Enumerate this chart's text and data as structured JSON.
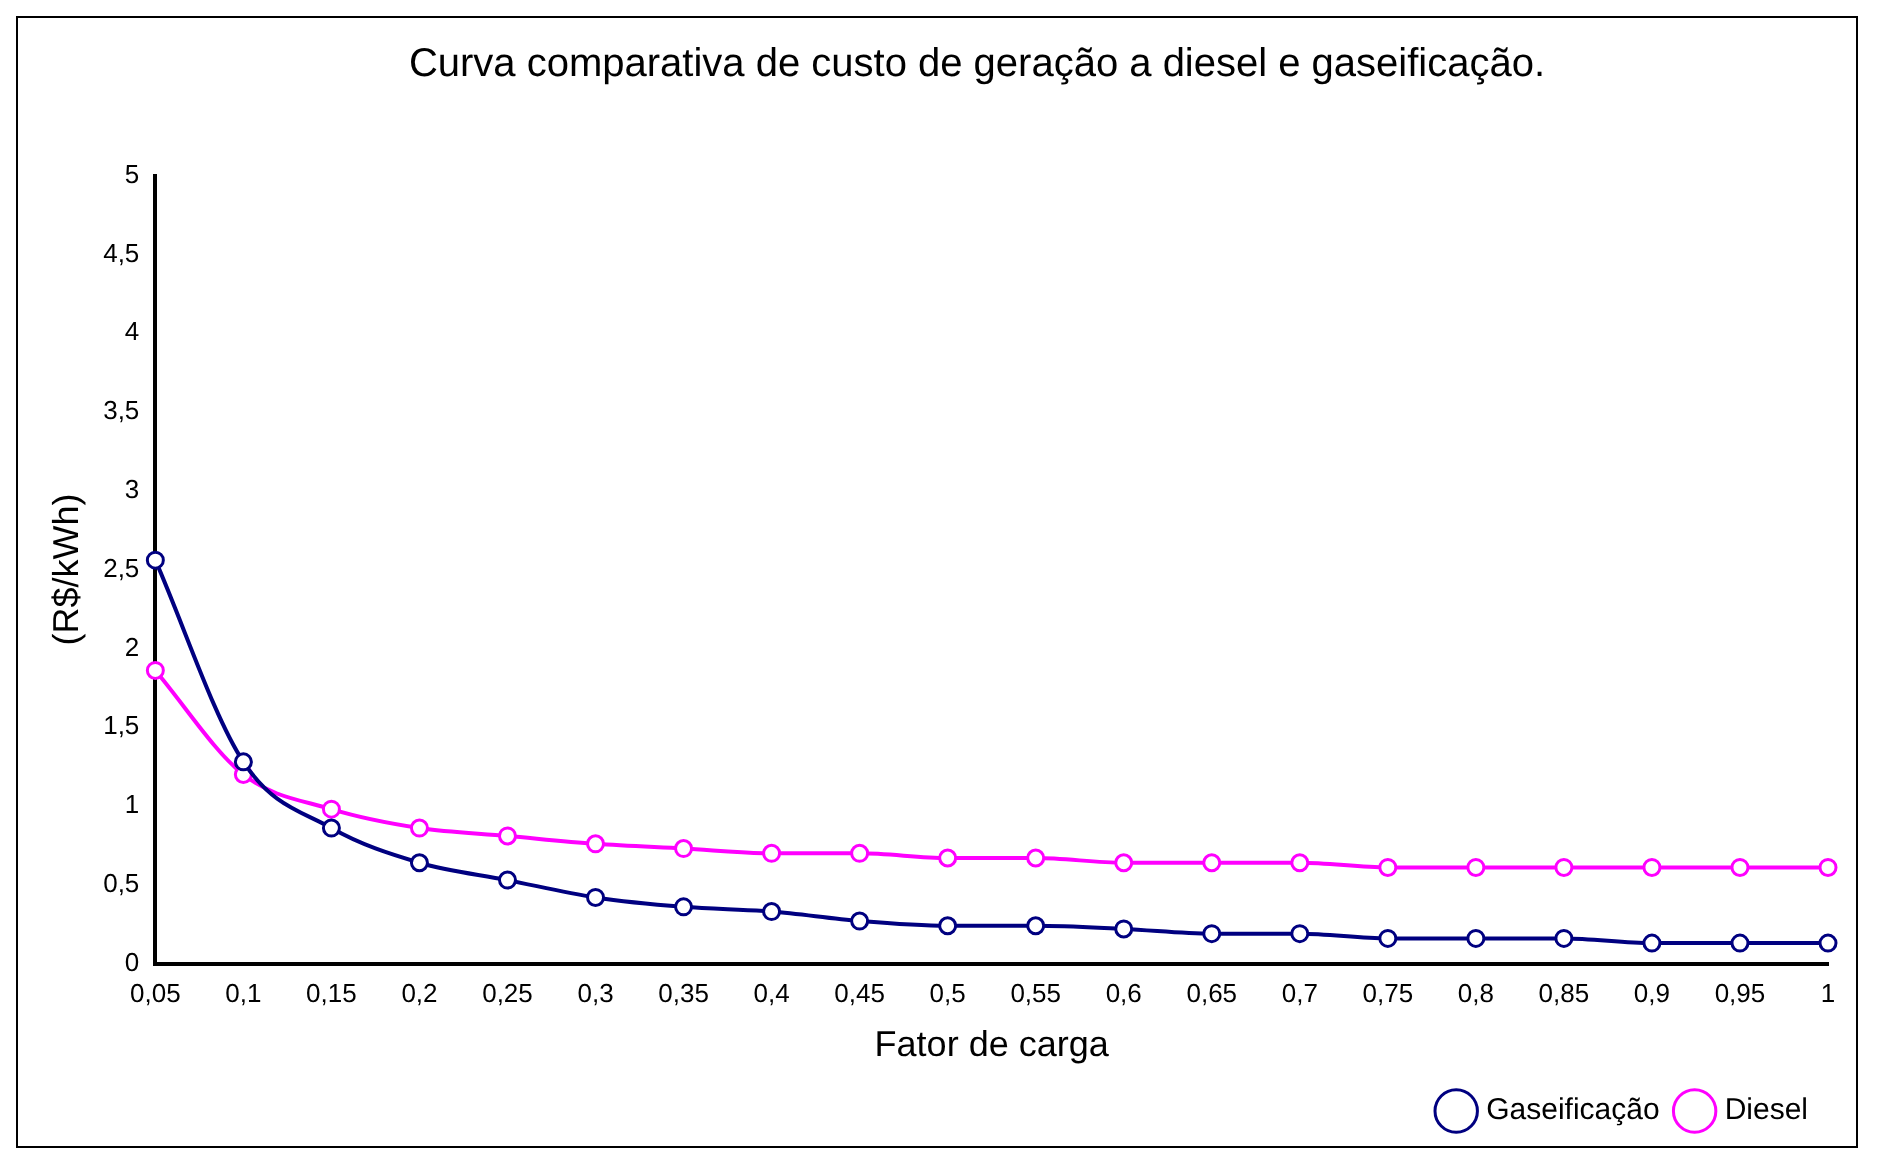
{
  "chart_data": {
    "type": "line",
    "title": "Curva comparativa de custo de geração a diesel e gaseificação.",
    "xlabel": "Fator de carga",
    "ylabel": "(R$/kWh)",
    "categories": [
      "0,05",
      "0,1",
      "0,15",
      "0,2",
      "0,25",
      "0,3",
      "0,35",
      "0,4",
      "0,45",
      "0,5",
      "0,55",
      "0,6",
      "0,65",
      "0,7",
      "0,75",
      "0,8",
      "0,85",
      "0,9",
      "0,95",
      "1"
    ],
    "series": [
      {
        "name": "Gaseificação",
        "color": "#000080",
        "values": [
          2.56,
          1.28,
          0.86,
          0.64,
          0.53,
          0.42,
          0.36,
          0.33,
          0.27,
          0.24,
          0.24,
          0.22,
          0.19,
          0.19,
          0.16,
          0.16,
          0.16,
          0.13,
          0.13,
          0.13
        ]
      },
      {
        "name": "Diesel",
        "color": "#ff00ff",
        "values": [
          1.86,
          1.2,
          0.98,
          0.86,
          0.81,
          0.76,
          0.73,
          0.7,
          0.7,
          0.67,
          0.67,
          0.64,
          0.64,
          0.64,
          0.61,
          0.61,
          0.61,
          0.61,
          0.61,
          0.61
        ]
      }
    ],
    "ylim": [
      0,
      5
    ],
    "yticks": [
      0,
      {
        "value": 0.5,
        "label": "0,5"
      },
      1,
      {
        "value": 1.5,
        "label": "1,5"
      },
      2,
      {
        "value": 2.5,
        "label": "2,5"
      },
      3,
      {
        "value": 3.5,
        "label": "3,5"
      },
      4,
      {
        "value": 4.5,
        "label": "4,5"
      },
      5
    ],
    "grid": false,
    "legend": "bottom right",
    "marker": "circle",
    "line_style": "solid"
  }
}
